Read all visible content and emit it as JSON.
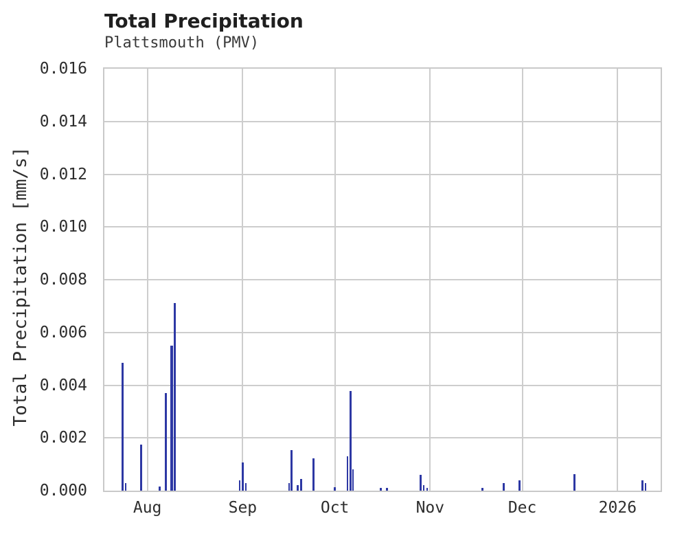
{
  "header": {
    "title": "Total Precipitation",
    "subtitle": "Plattsmouth (PMV)"
  },
  "chart_data": {
    "type": "bar",
    "title": "Total Precipitation",
    "subtitle": "Plattsmouth (PMV)",
    "xlabel": "",
    "ylabel": "Total Precipitation [mm/s]",
    "ylim": [
      0,
      0.016
    ],
    "x_domain": [
      "2025-07-18",
      "2026-01-15"
    ],
    "grid": true,
    "legend": "none",
    "colors": {
      "bar": "#2d38a4",
      "grid": "#cdcdcd",
      "border": "#c9c9c9",
      "text": "#2e2e2e",
      "title": "#1f1f1f",
      "subtitle": "#3a3a3a"
    },
    "y_ticks": [
      {
        "value": 0.0,
        "label": "0.000"
      },
      {
        "value": 0.002,
        "label": "0.002"
      },
      {
        "value": 0.004,
        "label": "0.004"
      },
      {
        "value": 0.006,
        "label": "0.006"
      },
      {
        "value": 0.008,
        "label": "0.008"
      },
      {
        "value": 0.01,
        "label": "0.010"
      },
      {
        "value": 0.012,
        "label": "0.012"
      },
      {
        "value": 0.014,
        "label": "0.014"
      },
      {
        "value": 0.016,
        "label": "0.016"
      }
    ],
    "x_ticks": [
      {
        "date": "2025-08-01",
        "label": "Aug"
      },
      {
        "date": "2025-09-01",
        "label": "Sep"
      },
      {
        "date": "2025-10-01",
        "label": "Oct"
      },
      {
        "date": "2025-11-01",
        "label": "Nov"
      },
      {
        "date": "2025-12-01",
        "label": "Dec"
      },
      {
        "date": "2026-01-01",
        "label": "2026"
      }
    ],
    "points": [
      {
        "date": "2025-07-24",
        "value": 0.00486
      },
      {
        "date": "2025-07-25",
        "value": 0.0003,
        "w": 2
      },
      {
        "date": "2025-07-30",
        "value": 0.00175
      },
      {
        "date": "2025-08-05",
        "value": 0.00015
      },
      {
        "date": "2025-08-07",
        "value": 0.00371
      },
      {
        "date": "2025-08-09",
        "value": 0.0055,
        "w": 4
      },
      {
        "date": "2025-08-10",
        "value": 0.00711
      },
      {
        "date": "2025-08-31",
        "value": 0.0004,
        "w": 2
      },
      {
        "date": "2025-09-01",
        "value": 0.00107
      },
      {
        "date": "2025-09-02",
        "value": 0.0003,
        "w": 2
      },
      {
        "date": "2025-09-16",
        "value": 0.0003,
        "w": 2
      },
      {
        "date": "2025-09-17",
        "value": 0.00154
      },
      {
        "date": "2025-09-19",
        "value": 0.0002
      },
      {
        "date": "2025-09-20",
        "value": 0.00045
      },
      {
        "date": "2025-09-24",
        "value": 0.00123
      },
      {
        "date": "2025-10-01",
        "value": 0.00012
      },
      {
        "date": "2025-10-05",
        "value": 0.0013,
        "w": 2
      },
      {
        "date": "2025-10-06",
        "value": 0.00377
      },
      {
        "date": "2025-10-07",
        "value": 0.0008,
        "w": 2
      },
      {
        "date": "2025-10-16",
        "value": 0.0001
      },
      {
        "date": "2025-10-18",
        "value": 0.0001
      },
      {
        "date": "2025-10-29",
        "value": 0.0006
      },
      {
        "date": "2025-10-30",
        "value": 0.0002,
        "w": 2
      },
      {
        "date": "2025-10-31",
        "value": 0.0001,
        "w": 2
      },
      {
        "date": "2025-11-18",
        "value": 0.0001
      },
      {
        "date": "2025-11-25",
        "value": 0.0003
      },
      {
        "date": "2025-11-30",
        "value": 0.0004
      },
      {
        "date": "2025-12-18",
        "value": 0.00063
      },
      {
        "date": "2026-01-09",
        "value": 0.0004
      },
      {
        "date": "2026-01-10",
        "value": 0.0003,
        "w": 2
      }
    ]
  }
}
